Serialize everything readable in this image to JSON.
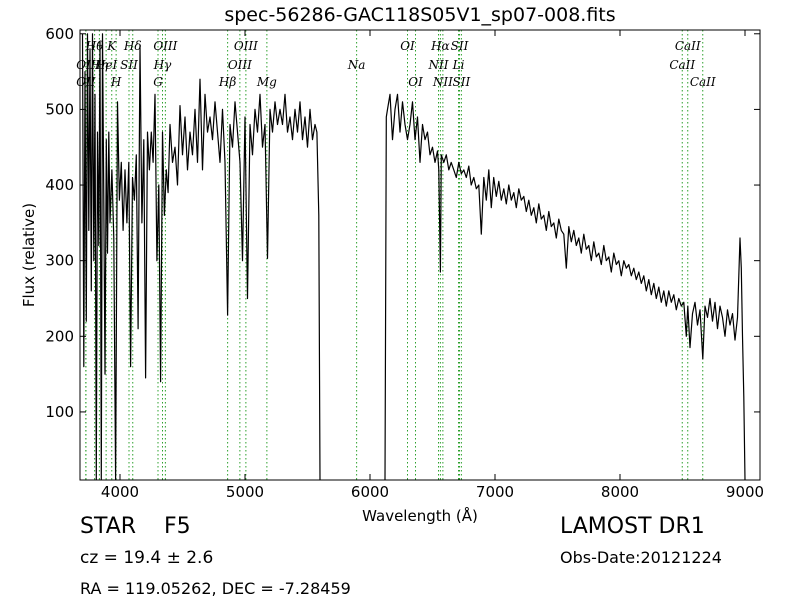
{
  "chart_data": {
    "type": "line",
    "title": "spec-56286-GAC118S05V1_sp07-008.fits",
    "xlabel": "Wavelength (Å)",
    "ylabel": "Flux (relative)",
    "xlim": [
      3680,
      9120
    ],
    "ylim": [
      10,
      605
    ],
    "xticks": [
      4000,
      5000,
      6000,
      7000,
      8000,
      9000
    ],
    "yticks": [
      100,
      200,
      300,
      400,
      500,
      600
    ],
    "grid": false,
    "line_color": "#000000",
    "line_marker_color": "#2ca02c",
    "series": [
      {
        "segments": [
          {
            "x": [
              3700,
              3710,
              3720,
              3730,
              3740,
              3750,
              3760,
              3770,
              3780,
              3790,
              3800,
              3810,
              3820,
              3830,
              3840,
              3850,
              3860,
              3870,
              3880,
              3890,
              3900,
              3910,
              3920,
              3935,
              3950,
              3965,
              3980,
              3995,
              4010,
              4025,
              4040,
              4055,
              4070,
              4085,
              4100,
              4115,
              4130,
              4145,
              4160,
              4175,
              4190,
              4205,
              4220,
              4235,
              4250,
              4265,
              4280,
              4295,
              4310,
              4325,
              4340,
              4355,
              4370,
              4385,
              4400,
              4420,
              4440,
              4460,
              4480,
              4500,
              4520,
              4540,
              4560,
              4580,
              4600,
              4620,
              4640,
              4660,
              4680,
              4700,
              4720,
              4740,
              4760,
              4780,
              4800,
              4820,
              4840,
              4861,
              4880,
              4900,
              4920,
              4940,
              4960,
              4980,
              5000,
              5020,
              5040,
              5060,
              5080,
              5100,
              5120,
              5140,
              5160,
              5180,
              5200,
              5220,
              5240,
              5260,
              5280,
              5300,
              5320,
              5340,
              5360,
              5380,
              5400,
              5420,
              5440,
              5460,
              5480,
              5500,
              5520,
              5540,
              5560,
              5575,
              5590,
              5600
            ],
            "y": [
              600,
              160,
              550,
              220,
              600,
              340,
              580,
              260,
              600,
              300,
              520,
              10,
              470,
              320,
              590,
              10,
              600,
              380,
              150,
              460,
              310,
              470,
              350,
              420,
              330,
              10,
              510,
              380,
              430,
              340,
              420,
              350,
              430,
              160,
              410,
              380,
              440,
              210,
              585,
              350,
              460,
              145,
              470,
              420,
              470,
              430,
              520,
              300,
              400,
              140,
              470,
              360,
              420,
              390,
              480,
              430,
              450,
              400,
              505,
              440,
              490,
              420,
              470,
              440,
              500,
              430,
              540,
              420,
              520,
              470,
              490,
              460,
              510,
              470,
              430,
              500,
              430,
              228,
              480,
              450,
              510,
              470,
              430,
              300,
              490,
              250,
              480,
              440,
              500,
              470,
              520,
              450,
              480,
              303,
              500,
              470,
              510,
              480,
              500,
              480,
              520,
              470,
              490,
              460,
              500,
              470,
              510,
              460,
              490,
              450,
              500,
              460,
              480,
              470,
              360,
              10
            ]
          },
          {
            "x": [
              6120,
              6130,
              6140,
              6160,
              6180,
              6200,
              6220,
              6240,
              6260,
              6280,
              6300,
              6320,
              6340,
              6360,
              6380,
              6400,
              6420,
              6440,
              6460,
              6480,
              6500,
              6520,
              6540,
              6550,
              6563,
              6570,
              6590,
              6610,
              6630,
              6650,
              6670,
              6690,
              6710,
              6730,
              6750,
              6770,
              6790,
              6810,
              6830,
              6850,
              6870,
              6890,
              6910,
              6930,
              6950,
              6970,
              6990,
              7010,
              7030,
              7050,
              7070,
              7090,
              7110,
              7130,
              7150,
              7170,
              7190,
              7210,
              7230,
              7250,
              7270,
              7290,
              7310,
              7330,
              7350,
              7370,
              7390,
              7410,
              7430,
              7450,
              7470,
              7490,
              7510,
              7530,
              7550,
              7570,
              7590,
              7610,
              7630,
              7650,
              7670,
              7690,
              7710,
              7730,
              7750,
              7770,
              7790,
              7810,
              7830,
              7850,
              7870,
              7890,
              7910,
              7930,
              7950,
              7970,
              7990,
              8010,
              8030,
              8050,
              8070,
              8090,
              8110,
              8130,
              8150,
              8170,
              8190,
              8210,
              8230,
              8250,
              8270,
              8290,
              8310,
              8330,
              8350,
              8370,
              8390,
              8410,
              8430,
              8450,
              8470,
              8490,
              8510,
              8530,
              8542,
              8560,
              8580,
              8600,
              8620,
              8640,
              8662,
              8680,
              8700,
              8720,
              8740,
              8760,
              8780,
              8800,
              8820,
              8840,
              8860,
              8880,
              8900,
              8920,
              8940,
              8960,
              8970,
              8980,
              8990,
              9000
            ],
            "y": [
              10,
              490,
              500,
              520,
              460,
              500,
              520,
              470,
              510,
              480,
              460,
              480,
              510,
              460,
              490,
              430,
              480,
              460,
              470,
              440,
              450,
              430,
              445,
              420,
              285,
              440,
              430,
              440,
              420,
              430,
              420,
              410,
              430,
              415,
              420,
              410,
              425,
              400,
              410,
              395,
              400,
              335,
              410,
              380,
              420,
              370,
              410,
              385,
              405,
              380,
              395,
              375,
              400,
              380,
              390,
              370,
              395,
              380,
              385,
              365,
              380,
              360,
              370,
              350,
              375,
              355,
              360,
              340,
              365,
              345,
              350,
              330,
              355,
              340,
              335,
              290,
              345,
              325,
              340,
              320,
              330,
              310,
              335,
              315,
              320,
              300,
              325,
              305,
              310,
              295,
              320,
              300,
              305,
              285,
              310,
              295,
              300,
              280,
              300,
              290,
              295,
              280,
              290,
              275,
              285,
              270,
              280,
              260,
              275,
              255,
              270,
              250,
              265,
              245,
              260,
              240,
              260,
              245,
              255,
              235,
              250,
              240,
              245,
              200,
              240,
              185,
              230,
              245,
              215,
              235,
              170,
              240,
              225,
              250,
              220,
              245,
              210,
              240,
              225,
              200,
              235,
              215,
              230,
              195,
              225,
              330,
              290,
              200,
              120,
              10
            ]
          }
        ]
      }
    ],
    "spectral_lines": [
      {
        "label": "OII",
        "x": 3727,
        "row": 2
      },
      {
        "label": "OII",
        "x": 3727,
        "row": 3
      },
      {
        "label": "Hθ",
        "x": 3797,
        "row": 1
      },
      {
        "label": "Hη",
        "x": 3835,
        "row": 2
      },
      {
        "label": "K",
        "x": 3934,
        "row": 1
      },
      {
        "label": "HeI",
        "x": 3889,
        "row": 2
      },
      {
        "label": "H",
        "x": 3969,
        "row": 3
      },
      {
        "label": "SII",
        "x": 4072,
        "row": 2
      },
      {
        "label": "Hδ",
        "x": 4102,
        "row": 1
      },
      {
        "label": "OIII",
        "x": 4363,
        "row": 1
      },
      {
        "label": "Hγ",
        "x": 4340,
        "row": 2
      },
      {
        "label": "G",
        "x": 4304,
        "row": 3
      },
      {
        "label": "OIII",
        "x": 5007,
        "row": 1
      },
      {
        "label": "Hβ",
        "x": 4861,
        "row": 3
      },
      {
        "label": "OIII",
        "x": 4959,
        "row": 2
      },
      {
        "label": "Mg",
        "x": 5175,
        "row": 3
      },
      {
        "label": "Na",
        "x": 5893,
        "row": 2
      },
      {
        "label": "OI",
        "x": 6300,
        "row": 1
      },
      {
        "label": "OI",
        "x": 6364,
        "row": 3
      },
      {
        "label": "Hα",
        "x": 6563,
        "row": 1
      },
      {
        "label": "SII",
        "x": 6716,
        "row": 1
      },
      {
        "label": "NII",
        "x": 6548,
        "row": 2
      },
      {
        "label": "Li",
        "x": 6708,
        "row": 2
      },
      {
        "label": "NII",
        "x": 6583,
        "row": 3
      },
      {
        "label": "SII",
        "x": 6731,
        "row": 3
      },
      {
        "label": "CaII",
        "x": 8542,
        "row": 1
      },
      {
        "label": "CaII",
        "x": 8498,
        "row": 2
      },
      {
        "label": "CaII",
        "x": 8662,
        "row": 3
      }
    ]
  },
  "info": {
    "object_class": "STAR",
    "subclass": "F5",
    "redshift_text": "cz = 19.4 ± 2.6",
    "coords_text": "RA = 119.05262, DEC = -7.28459",
    "survey": "LAMOST DR1",
    "obs_date": "Obs-Date:20121224"
  }
}
